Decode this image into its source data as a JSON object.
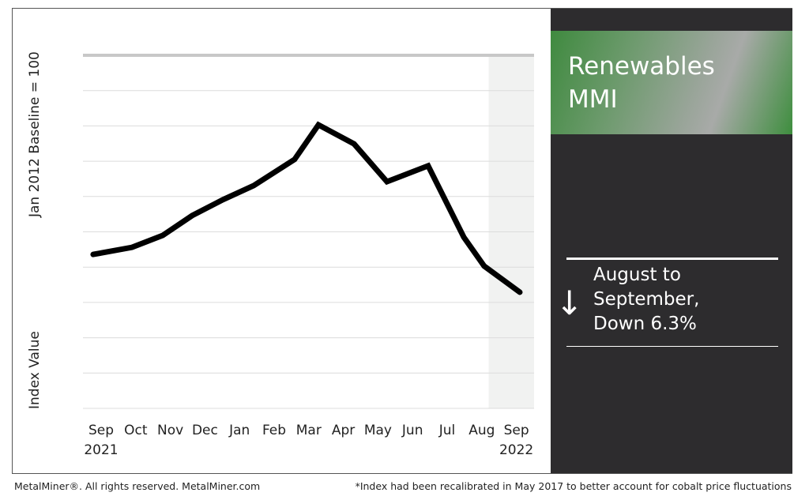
{
  "chart_data": {
    "type": "line",
    "title": "Renewables MMI",
    "ylabel_top": "Jan 2012 Baseline = 100",
    "ylabel_bottom": "Index Value",
    "ylim": [
      0,
      10
    ],
    "xlim": [
      -0.5,
      12.5
    ],
    "grid": true,
    "categories": [
      "Sep",
      "Oct",
      "Nov",
      "Dec",
      "Jan",
      "Feb",
      "Mar",
      "Apr",
      "May",
      "Jun",
      "Jul",
      "Aug",
      "Sep"
    ],
    "year_labels": [
      {
        "index": 0,
        "label": "2021"
      },
      {
        "index": 12,
        "label": "2022"
      }
    ],
    "highlight_range": [
      11.2,
      12.5
    ],
    "series": [
      {
        "name": "Renewables MMI",
        "x": [
          -0.23,
          0.89,
          1.78,
          2.63,
          3.52,
          4.41,
          5.59,
          6.28,
          7.31,
          8.26,
          9.45,
          10.48,
          11.07,
          12.1
        ],
        "values": [
          4.36,
          4.56,
          4.9,
          5.46,
          5.91,
          6.31,
          7.05,
          8.03,
          7.49,
          6.42,
          6.87,
          4.85,
          4.03,
          3.29
        ]
      }
    ],
    "annotation": "August to September, Down 6.3%"
  },
  "panel": {
    "title_line1": "Renewables",
    "title_line2": "MMI",
    "change_line1": "August to",
    "change_line2": "September,",
    "change_line3": "Down 6.3%",
    "arrow": "down-arrow-icon"
  },
  "footer": {
    "left": "MetalMiner®. All rights reserved. MetalMiner.com",
    "right": "*Index had been recalibrated in May 2017 to better account for cobalt price fluctuations"
  },
  "colors": {
    "line": "#000000",
    "panel": "#2d2c2e",
    "green": "#3f8a3f"
  }
}
